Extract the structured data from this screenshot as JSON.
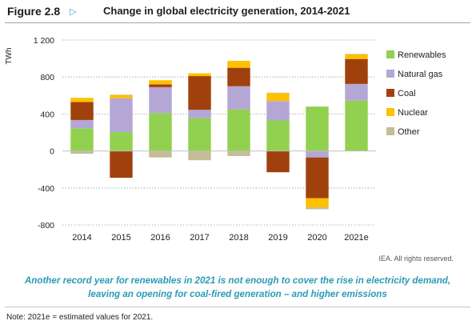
{
  "figure": {
    "label": "Figure 2.8",
    "arrow": "▷",
    "title": "Change in global electricity generation, 2014-2021"
  },
  "chart_data": {
    "type": "bar",
    "stacked": true,
    "ylabel": "TWh",
    "ylim": [
      -800,
      1200
    ],
    "yticks": [
      1200,
      800,
      400,
      0,
      -400,
      -800
    ],
    "ytick_labels": [
      "1 200",
      "800",
      "400",
      "0",
      "-400",
      "-800"
    ],
    "grid": "dotted horizontal",
    "legend_position": "right",
    "categories": [
      "2014",
      "2015",
      "2016",
      "2017",
      "2018",
      "2019",
      "2020",
      "2021e"
    ],
    "series": [
      {
        "name": "Renewables",
        "color": "#92d050",
        "values": [
          245,
          205,
          410,
          355,
          450,
          330,
          480,
          545
        ]
      },
      {
        "name": "Natural gas",
        "color": "#b4a7d6",
        "values": [
          90,
          365,
          280,
          90,
          250,
          210,
          -70,
          180
        ]
      },
      {
        "name": "Coal",
        "color": "#a0410d",
        "values": [
          195,
          -290,
          30,
          365,
          200,
          -230,
          -440,
          270
        ]
      },
      {
        "name": "Nuclear",
        "color": "#ffc000",
        "values": [
          45,
          35,
          45,
          30,
          75,
          85,
          -100,
          50
        ]
      },
      {
        "name": "Other",
        "color": "#c4bd97",
        "values": [
          -30,
          5,
          -70,
          -100,
          -55,
          5,
          -20,
          5
        ]
      }
    ]
  },
  "credit": "IEA. All rights reserved.",
  "caption": "Another record year for renewables in 2021 is not enough to cover the rise in electricity demand, leaving an opening for coal-fired generation – and higher emissions",
  "note": "Note: 2021e = estimated values for 2021."
}
